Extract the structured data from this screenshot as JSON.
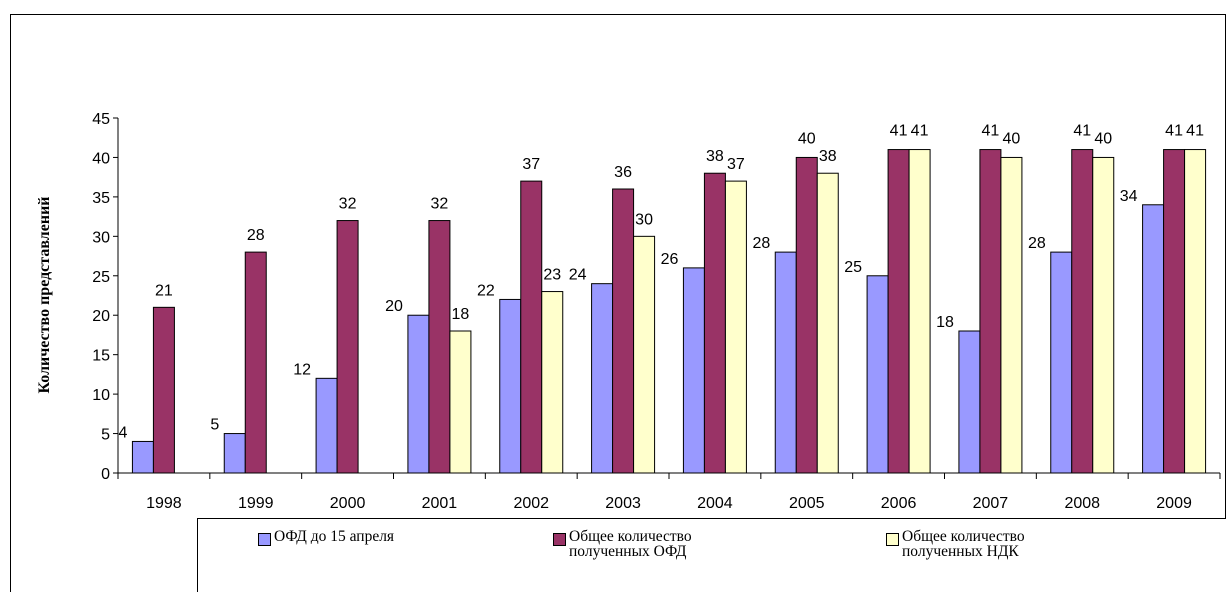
{
  "chart_data": {
    "type": "bar",
    "title": "",
    "xlabel": "",
    "ylabel": "Количество представлений",
    "ylim": [
      0,
      45
    ],
    "yticks": [
      0,
      5,
      10,
      15,
      20,
      25,
      30,
      35,
      40,
      45
    ],
    "categories": [
      "1998",
      "1999",
      "2000",
      "2001",
      "2002",
      "2003",
      "2004",
      "2005",
      "2006",
      "2007",
      "2008",
      "2009"
    ],
    "series": [
      {
        "name": "ОФД до 15 апреля",
        "color": "#9999ff",
        "values": [
          4,
          5,
          12,
          20,
          22,
          24,
          26,
          28,
          25,
          18,
          28,
          34
        ]
      },
      {
        "name": "Общее количество\nполученных ОФД",
        "color": "#993366",
        "values": [
          21,
          28,
          32,
          32,
          37,
          36,
          38,
          40,
          41,
          41,
          41,
          41
        ]
      },
      {
        "name": "Общее количество\nполученных НДК",
        "color": "#ffffcc",
        "values": [
          null,
          null,
          null,
          18,
          23,
          30,
          37,
          38,
          41,
          40,
          40,
          41
        ]
      }
    ],
    "grid": false,
    "legend_position": "bottom"
  }
}
